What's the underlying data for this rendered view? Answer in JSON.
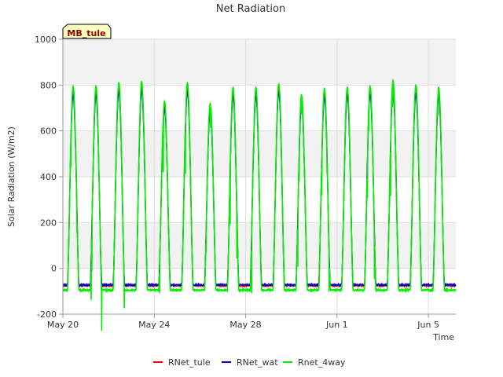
{
  "chart_data": {
    "type": "line",
    "title": "Net Radiation",
    "xlabel": "Time",
    "ylabel": "Solar Radiation (W/m2)",
    "site_label": "MB_tule",
    "ylim": [
      -200,
      1000
    ],
    "yticks": [
      -200,
      0,
      200,
      400,
      600,
      800,
      1000
    ],
    "x_range_days": [
      0,
      17.2
    ],
    "xticks": [
      {
        "day": 0,
        "label": "May 20"
      },
      {
        "day": 4,
        "label": "May 24"
      },
      {
        "day": 8,
        "label": "May 28"
      },
      {
        "day": 12,
        "label": "Jun 1"
      },
      {
        "day": 16,
        "label": "Jun 5"
      }
    ],
    "series": [
      {
        "name": "RNet_tule",
        "color": "#ff0000",
        "night": -75,
        "scale": 0.97
      },
      {
        "name": "RNet_wat",
        "color": "#0000cc",
        "night": -72,
        "scale": 0.95
      },
      {
        "name": "Rnet_4way",
        "color": "#00ee00",
        "night": -95,
        "scale": 1.0
      }
    ],
    "daily_peaks": [
      795,
      795,
      810,
      815,
      730,
      810,
      720,
      790,
      790,
      805,
      760,
      785,
      790,
      795,
      820,
      800,
      790
    ],
    "grid": true,
    "legend_position": "bottom"
  }
}
